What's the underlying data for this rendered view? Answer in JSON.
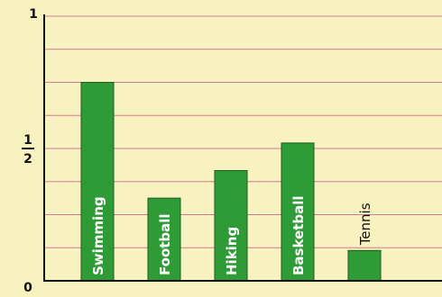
{
  "chart_data": {
    "type": "bar",
    "title": "",
    "xlabel": "",
    "ylabel": "",
    "categories": [
      "Swimming",
      "Football",
      "Hiking",
      "Basketball",
      "Tennis"
    ],
    "values": [
      0.75,
      0.3125,
      0.4167,
      0.5208,
      0.1146
    ],
    "ylim": [
      0,
      1
    ],
    "y_tick_labels": {
      "zero": "0",
      "half_numerator": "1",
      "half_denominator": "2",
      "one": "1"
    },
    "grid": true,
    "grid_lines_count": 8,
    "colors": {
      "background": "#f8f2c0",
      "bar": "#2f9b36",
      "bar_outline": "#1a5d1e",
      "grid": "#d3798f",
      "axis": "#111111"
    }
  }
}
